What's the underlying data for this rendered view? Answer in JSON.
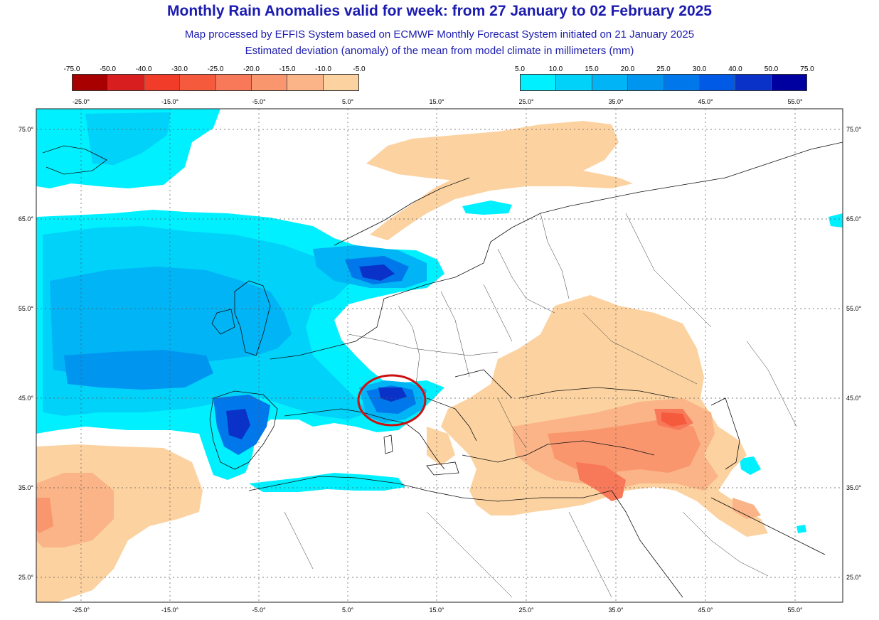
{
  "title": "Monthly Rain Anomalies valid for week: from 27 January to 02 February 2025",
  "subtitle1": "Map processed by EFFIS System based on ECMWF Monthly Forecast System initiated on 21 January 2025",
  "subtitle2": "Estimated deviation (anomaly) of the mean from model climate in millimeters (mm)",
  "legend_negative": {
    "ticks": [
      "-75.0",
      "-50.0",
      "-40.0",
      "-30.0",
      "-25.0",
      "-20.0",
      "-15.0",
      "-10.0",
      "-5.0"
    ],
    "colors": [
      "#a80000",
      "#d81e1e",
      "#f03c28",
      "#f55a3c",
      "#f8785a",
      "#f9966e",
      "#fab487",
      "#fcd2a0"
    ]
  },
  "legend_positive": {
    "ticks": [
      "5.0",
      "10.0",
      "15.0",
      "20.0",
      "25.0",
      "30.0",
      "40.0",
      "50.0",
      "75.0"
    ],
    "colors": [
      "#00f0ff",
      "#00d2fa",
      "#00b4f5",
      "#0096f0",
      "#0078eb",
      "#005ae6",
      "#0a32c8",
      "#0000a0"
    ]
  },
  "lon_labels": [
    "-25.0°",
    "-15.0°",
    "-5.0°",
    "5.0°",
    "15.0°",
    "25.0°",
    "35.0°",
    "45.0°",
    "55.0°"
  ],
  "lat_labels": [
    "75.0°",
    "65.0°",
    "55.0°",
    "45.0°",
    "35.0°",
    "25.0°"
  ],
  "highlight": {
    "shape": "ellipse",
    "color": "#cc1111",
    "region": "North-west Italy / Ligurian Sea"
  }
}
